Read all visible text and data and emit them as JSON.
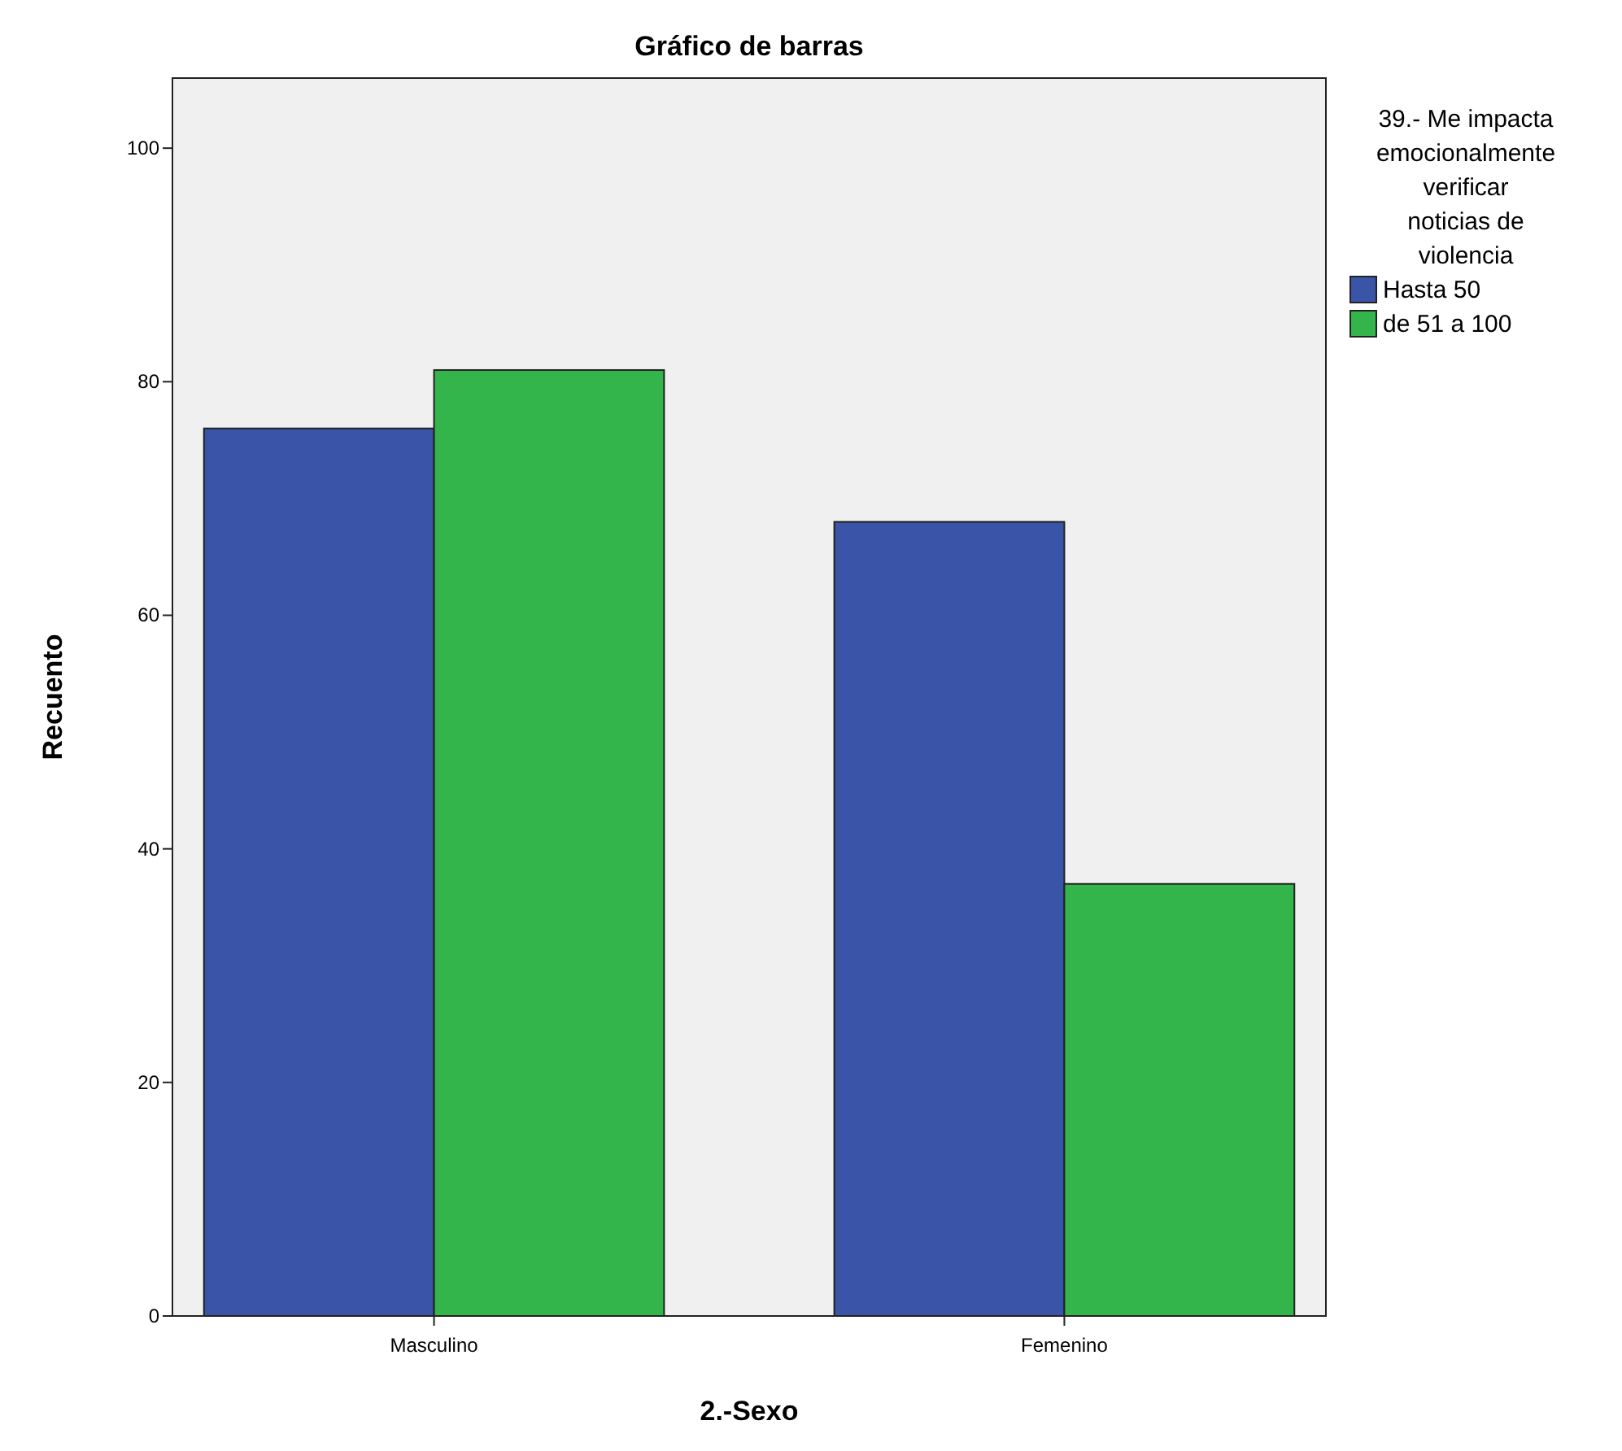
{
  "chart_data": {
    "type": "bar",
    "title": "Gráfico de barras",
    "xlabel": "2.-Sexo",
    "ylabel": "Recuento",
    "legend_title": "39.- Me impacta emocionalmente verificar noticias de violencia",
    "categories": [
      "Masculino",
      "Femenino"
    ],
    "series": [
      {
        "name": "Hasta 50",
        "color": "#3a54a8",
        "values": [
          76,
          68
        ]
      },
      {
        "name": "de 51 a 100",
        "color": "#33b54b",
        "values": [
          81,
          37
        ]
      }
    ],
    "ylim": [
      0,
      106
    ],
    "yticks": [
      0,
      20,
      40,
      60,
      80,
      100
    ],
    "grid": false,
    "legend": "top right"
  }
}
